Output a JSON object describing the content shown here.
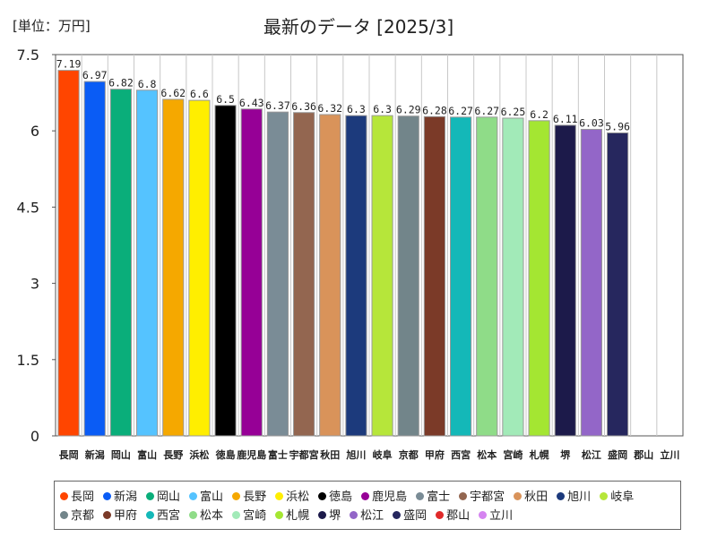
{
  "header": {
    "unit_label": "[単位：万円]",
    "title": "最新のデータ [2025/3]"
  },
  "chart_data": {
    "type": "bar",
    "title": "最新のデータ [2025/3]",
    "ylabel": "[単位：万円]",
    "ylim": [
      0,
      7.5
    ],
    "yticks": [
      0,
      1.5,
      3,
      4.5,
      6,
      7.5
    ],
    "ytick_labels": [
      "0",
      "1.5",
      "3",
      "4.5",
      "6",
      "7.5"
    ],
    "categories": [
      "長岡",
      "新潟",
      "岡山",
      "富山",
      "長野",
      "浜松",
      "徳島",
      "鹿児島",
      "富士",
      "宇都宮",
      "秋田",
      "旭川",
      "岐阜",
      "京都",
      "甲府",
      "西宮",
      "松本",
      "宮崎",
      "札幌",
      "堺",
      "松江",
      "盛岡",
      "郡山",
      "立川"
    ],
    "values": [
      7.19,
      6.97,
      6.82,
      6.8,
      6.62,
      6.6,
      6.5,
      6.43,
      6.37,
      6.36,
      6.32,
      6.3,
      6.3,
      6.29,
      6.28,
      6.27,
      6.27,
      6.25,
      6.2,
      6.11,
      6.03,
      5.96,
      null,
      null
    ],
    "value_labels": [
      "7.19",
      "6.97",
      "6.82",
      "6.8",
      "6.62",
      "6.6",
      "6.5",
      "6.43",
      "6.37",
      "6.36",
      "6.32",
      "6.3",
      "6.3",
      "6.29",
      "6.28",
      "6.27",
      "6.27",
      "6.25",
      "6.2",
      "6.11",
      "6.03",
      "5.96",
      "",
      ""
    ],
    "colors": [
      "#ff4500",
      "#0a5cf5",
      "#0aae7a",
      "#55c3ff",
      "#f5a800",
      "#ffee00",
      "#000000",
      "#960096",
      "#7a8c96",
      "#936650",
      "#d9935a",
      "#1c3a7c",
      "#b6e63a",
      "#72858a",
      "#7b3a28",
      "#14b8b8",
      "#8fdc88",
      "#a2eab8",
      "#a4e632",
      "#1c1a4a",
      "#9366c8",
      "#26275e",
      "#e02a2a",
      "#d584f0"
    ],
    "legend": {
      "position": "bottom",
      "rows": [
        [
          0,
          1,
          2,
          3,
          4,
          5,
          6,
          7,
          8,
          9,
          10,
          11,
          12
        ],
        [
          13,
          14,
          15,
          16,
          17,
          18,
          19,
          20,
          21,
          22,
          23
        ]
      ]
    },
    "grid": "vertical-category-lines"
  }
}
